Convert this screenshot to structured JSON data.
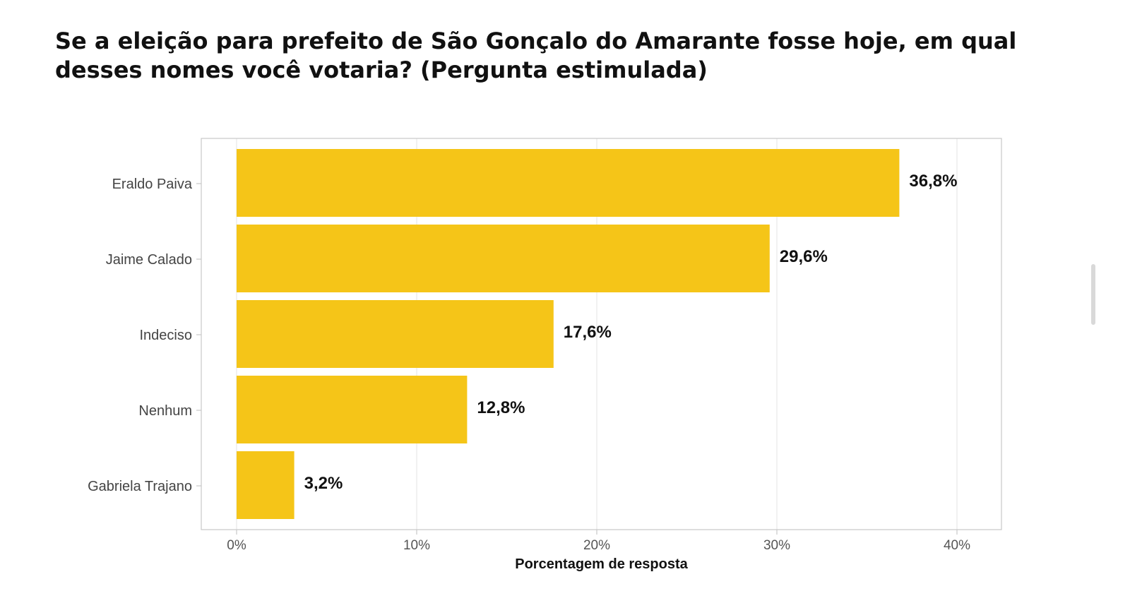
{
  "chart_data": {
    "type": "bar",
    "orientation": "horizontal",
    "title": "Se a eleição para prefeito de São Gonçalo do Amarante fosse hoje, em qual desses nomes você votaria? (Pergunta estimulada)",
    "xlabel": "Porcentagem de resposta",
    "ylabel": "",
    "categories": [
      "Eraldo Paiva",
      "Jaime Calado",
      "Indeciso",
      "Nenhum",
      "Gabriela Trajano"
    ],
    "values": [
      36.8,
      29.6,
      17.6,
      12.8,
      3.2
    ],
    "value_labels": [
      "36,8%",
      "29,6%",
      "17,6%",
      "12,8%",
      "3,2%"
    ],
    "xlim": [
      0,
      40
    ],
    "x_ticks": [
      0,
      10,
      20,
      30,
      40
    ],
    "x_tick_labels": [
      "0%",
      "10%",
      "20%",
      "30%",
      "40%"
    ],
    "grid": true,
    "legend": "none",
    "bar_color": "#F5C518"
  }
}
